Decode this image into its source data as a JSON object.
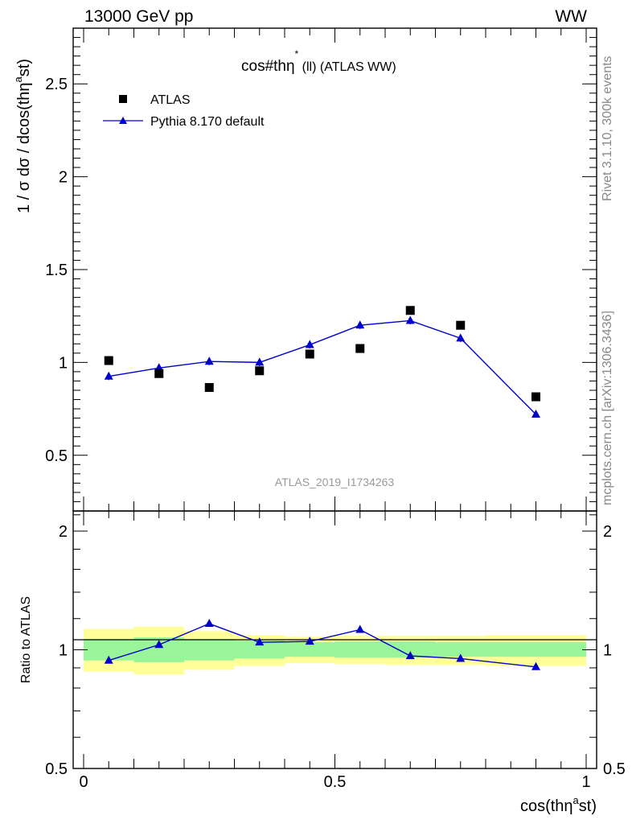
{
  "header": {
    "left": "13000 GeV pp",
    "right": "WW"
  },
  "side_labels": {
    "rivet": "Rivet 3.1.10,  300k events",
    "mcplots": "mcplots.cern.ch [arXiv:1306.3436]"
  },
  "colors": {
    "data": "#000000",
    "mc": "#0000cc",
    "band_inner": "#99f599",
    "band_outer": "#ffff99"
  },
  "chart_data": [
    {
      "type": "scatter",
      "title": "cos#thη* (ll) (ATLAS WW)",
      "title_main": "cos#thη",
      "title_sup": "*",
      "title_sub": " (ll) (ATLAS WW)",
      "ylabel": "1 / σ  dσ / dcos(thη^a st)",
      "ylabel_main": "1 / σ  dσ / dcos(thη",
      "ylabel_sup": "a",
      "ylabel_end": "st)",
      "watermark": "ATLAS_2019_I1734263",
      "xlim": [
        0,
        1
      ],
      "ylim": [
        0.2,
        2.8
      ],
      "log_y": false,
      "grid": false,
      "legend_position": "top-left",
      "y_ticks": [
        0.5,
        1,
        1.5,
        2,
        2.5
      ],
      "y_tick_labels": [
        "0.5",
        "1",
        "1.5",
        "2",
        "2.5"
      ],
      "series": [
        {
          "name": "ATLAS",
          "marker": "square",
          "x": [
            0.05,
            0.15,
            0.25,
            0.35,
            0.45,
            0.55,
            0.65,
            0.75,
            0.9
          ],
          "y": [
            1.01,
            0.94,
            0.865,
            0.955,
            1.045,
            1.075,
            1.28,
            1.2,
            0.815
          ]
        },
        {
          "name": "Pythia 8.170 default",
          "marker": "triangle",
          "x": [
            0.05,
            0.15,
            0.25,
            0.35,
            0.45,
            0.55,
            0.65,
            0.75,
            0.9
          ],
          "y": [
            0.925,
            0.97,
            1.005,
            1.0,
            1.095,
            1.2,
            1.225,
            1.13,
            0.72
          ],
          "yerr": [
            0.02,
            0.02,
            0.02,
            0.02,
            0.02,
            0.02,
            0.02,
            0.02,
            0.01
          ]
        }
      ]
    },
    {
      "type": "line",
      "ylabel": "Ratio to ATLAS",
      "xlabel": "cos(thη^a st)",
      "xlabel_main": "cos(thη",
      "xlabel_sup": "a",
      "xlabel_end": "st)",
      "xlim": [
        0,
        1
      ],
      "ylim": [
        0.5,
        2.25
      ],
      "log_y": true,
      "grid": false,
      "x_ticks": [
        0,
        0.5,
        1
      ],
      "x_tick_labels": [
        "0",
        "0.5",
        "1"
      ],
      "y_ticks": [
        0.5,
        1,
        2
      ],
      "y_tick_labels": [
        "0.5",
        "1",
        "2"
      ],
      "bands": {
        "edges": [
          0,
          0.1,
          0.2,
          0.3,
          0.4,
          0.5,
          0.6,
          0.7,
          0.8,
          1.0
        ],
        "inner_lo": [
          0.94,
          0.93,
          0.94,
          0.95,
          0.96,
          0.955,
          0.955,
          0.96,
          0.96
        ],
        "inner_hi": [
          1.065,
          1.075,
          1.065,
          1.055,
          1.045,
          1.05,
          1.05,
          1.045,
          1.045
        ],
        "outer_lo": [
          0.88,
          0.865,
          0.89,
          0.91,
          0.925,
          0.92,
          0.915,
          0.915,
          0.91
        ],
        "outer_hi": [
          1.13,
          1.145,
          1.115,
          1.09,
          1.08,
          1.085,
          1.085,
          1.085,
          1.09
        ]
      },
      "series": [
        {
          "name": "Pythia 8.170 default",
          "x": [
            0.05,
            0.15,
            0.25,
            0.35,
            0.45,
            0.55,
            0.65,
            0.75,
            0.9
          ],
          "y": [
            0.94,
            1.03,
            1.165,
            1.045,
            1.05,
            1.125,
            0.965,
            0.95,
            0.905
          ]
        }
      ]
    }
  ]
}
